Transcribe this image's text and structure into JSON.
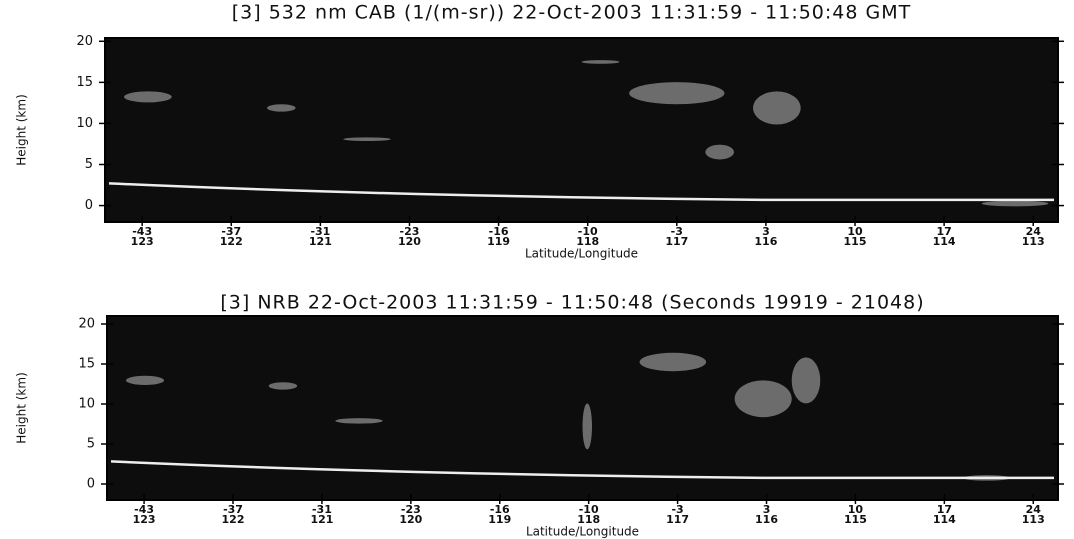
{
  "chart_data": [
    {
      "type": "image",
      "title": "[3]  532 nm CAB (1/(m-sr)) 22-Oct-2003 11:31:59 - 11:50:48 GMT",
      "ylabel": "Height (km)",
      "xlabel": "Latitude/Longitude",
      "categories": [
        -43,
        -37,
        -31,
        -23,
        -16,
        -10,
        -3,
        3,
        10,
        17,
        24
      ],
      "longitudes": [
        123,
        122,
        121,
        120,
        119,
        118,
        117,
        116,
        115,
        114,
        113
      ],
      "ylim": [
        -2,
        20.4
      ],
      "yticks": [
        0,
        5,
        10,
        15,
        20
      ]
    },
    {
      "type": "image",
      "title": "[3]  NRB 22-Oct-2003 11:31:59 - 11:50:48 (Seconds 19919 - 21048)",
      "ylabel": "Height (km)",
      "xlabel": "Latitude/Longitude",
      "categories": [
        -43,
        -37,
        -31,
        -23,
        -16,
        -10,
        -3,
        3,
        10,
        17,
        24
      ],
      "longitudes": [
        123,
        122,
        121,
        120,
        119,
        118,
        117,
        116,
        115,
        114,
        113
      ],
      "ylim": [
        -2,
        21
      ],
      "yticks": [
        0,
        5,
        10,
        15,
        20
      ]
    }
  ]
}
